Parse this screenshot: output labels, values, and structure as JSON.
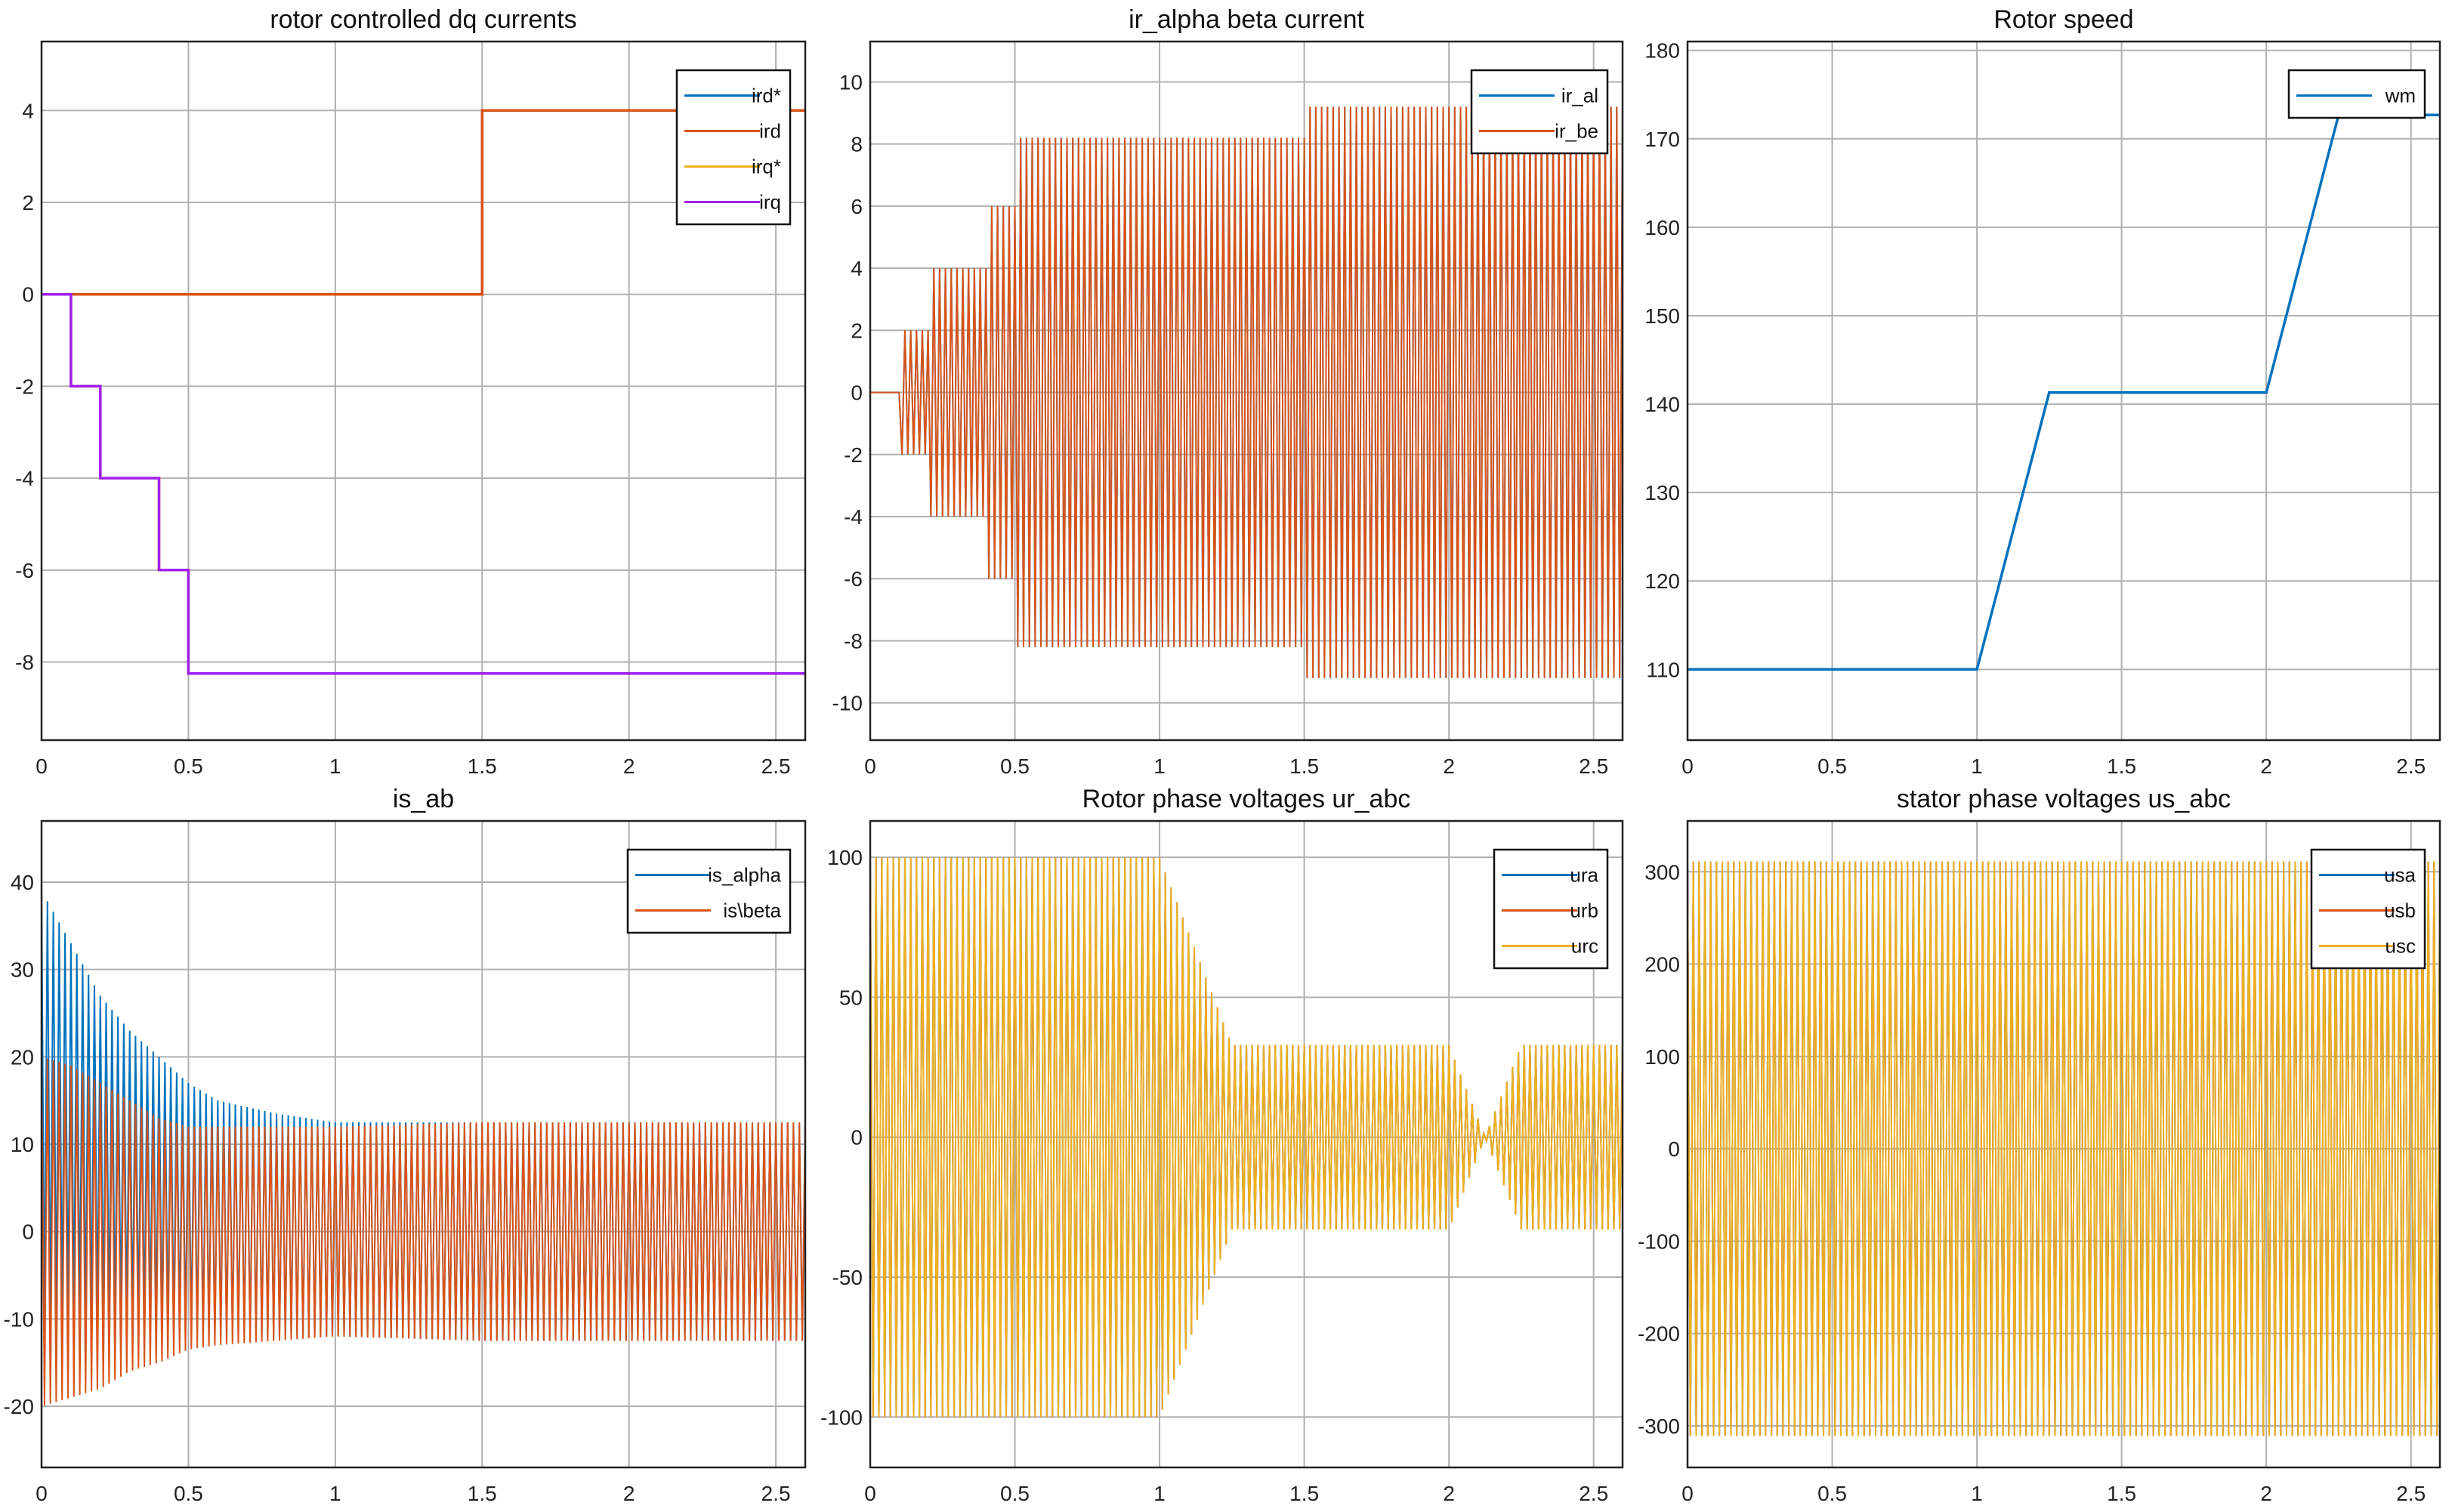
{
  "figure": {
    "colors": {
      "blue": "#0072BD",
      "orange": "#D95319",
      "yellow": "#EDB120",
      "purple": "#A020F0",
      "grid": "#b0b0b0",
      "axis": "#222222"
    }
  },
  "chart_data": [
    {
      "id": "dq",
      "type": "line",
      "title": "rotor controlled dq currents",
      "xlim": [
        0,
        2.6
      ],
      "ylim": [
        -9.7,
        5.5
      ],
      "xticks": [
        0,
        0.5,
        1,
        1.5,
        2,
        2.5
      ],
      "xtick_labels": [
        "0",
        "0.5",
        "1",
        "1.5",
        "2",
        "2.5"
      ],
      "yticks": [
        -8,
        -6,
        -4,
        -2,
        0,
        2,
        4
      ],
      "ytick_labels": [
        "-8",
        "-6",
        "-4",
        "-2",
        "0",
        "2",
        "4"
      ],
      "grid": true,
      "legend": "top-right",
      "series": [
        {
          "name": "ird*",
          "color": "blue",
          "kind": "step",
          "x": [
            0,
            1.5,
            1.5,
            2.6
          ],
          "y": [
            0,
            0,
            4,
            4
          ]
        },
        {
          "name": "ird",
          "color": "orange",
          "kind": "step",
          "x": [
            0,
            1.5,
            1.5,
            2.6
          ],
          "y": [
            0,
            0,
            4,
            4
          ]
        },
        {
          "name": "irq*",
          "color": "yellow",
          "kind": "step",
          "x": [
            0,
            0.1,
            0.1,
            0.2,
            0.2,
            0.4,
            0.4,
            0.5,
            0.5,
            2.6
          ],
          "y": [
            0,
            0,
            -2,
            -2,
            -4,
            -4,
            -6,
            -6,
            -8.25,
            -8.25
          ]
        },
        {
          "name": "irq",
          "color": "purple",
          "kind": "step",
          "x": [
            0,
            0.1,
            0.1,
            0.2,
            0.2,
            0.4,
            0.4,
            0.5,
            0.5,
            2.6
          ],
          "y": [
            0,
            0,
            -2,
            -2,
            -4,
            -4,
            -6,
            -6,
            -8.25,
            -8.25
          ]
        }
      ]
    },
    {
      "id": "iralphabeta",
      "type": "line",
      "title": "ir_alpha beta current",
      "xlim": [
        0,
        2.6
      ],
      "ylim": [
        -11.2,
        11.3
      ],
      "xticks": [
        0,
        0.5,
        1,
        1.5,
        2,
        2.5
      ],
      "xtick_labels": [
        "0",
        "0.5",
        "1",
        "1.5",
        "2",
        "2.5"
      ],
      "yticks": [
        -10,
        -8,
        -6,
        -4,
        -2,
        0,
        2,
        4,
        6,
        8,
        10
      ],
      "ytick_labels": [
        "-10",
        "-8",
        "-6",
        "-4",
        "-2",
        "0",
        "2",
        "4",
        "6",
        "8",
        "10"
      ],
      "grid": true,
      "legend": "top-right",
      "series": [
        {
          "name": "ir_al",
          "color": "blue",
          "kind": "oscillation",
          "x": [
            0,
            0.1,
            0.1,
            0.2,
            0.2,
            0.4,
            0.4,
            0.5,
            0.5,
            1.5,
            1.5,
            2.6
          ],
          "amplitude": [
            0,
            0,
            2,
            2,
            4,
            4,
            6,
            6,
            8.2,
            8.2,
            9.2,
            9.2
          ],
          "offset": 0
        },
        {
          "name": "ir_be",
          "color": "orange",
          "kind": "oscillation",
          "x": [
            0,
            0.1,
            0.1,
            0.2,
            0.2,
            0.4,
            0.4,
            0.5,
            0.5,
            1.5,
            1.5,
            2.6
          ],
          "amplitude": [
            0,
            0,
            2,
            2,
            4,
            4,
            6,
            6,
            8.2,
            8.2,
            9.2,
            9.2
          ],
          "offset": 0
        }
      ]
    },
    {
      "id": "speed",
      "type": "line",
      "title": "Rotor speed",
      "xlim": [
        0,
        2.6
      ],
      "ylim": [
        102,
        181
      ],
      "xticks": [
        0,
        0.5,
        1,
        1.5,
        2,
        2.5
      ],
      "xtick_labels": [
        "0",
        "0.5",
        "1",
        "1.5",
        "2",
        "2.5"
      ],
      "yticks": [
        110,
        120,
        130,
        140,
        150,
        160,
        170,
        180
      ],
      "ytick_labels": [
        "110",
        "120",
        "130",
        "140",
        "150",
        "160",
        "170",
        "180"
      ],
      "grid": true,
      "legend": "top-right",
      "series": [
        {
          "name": "wm",
          "color": "blue",
          "kind": "line",
          "x": [
            0,
            1,
            1.25,
            2,
            2.25,
            2.6
          ],
          "y": [
            110,
            110,
            141.3,
            141.3,
            172.7,
            172.7
          ]
        }
      ]
    },
    {
      "id": "isab",
      "type": "line",
      "title": "is_ab",
      "xlim": [
        0,
        2.6
      ],
      "ylim": [
        -27,
        47
      ],
      "xticks": [
        0,
        0.5,
        1,
        1.5,
        2,
        2.5
      ],
      "xtick_labels": [
        "0",
        "0.5",
        "1",
        "1.5",
        "2",
        "2.5"
      ],
      "yticks": [
        -20,
        -10,
        0,
        10,
        20,
        30,
        40
      ],
      "ytick_labels": [
        "-20",
        "-10",
        "0",
        "10",
        "20",
        "30",
        "40"
      ],
      "grid": true,
      "legend": "top-right",
      "series": [
        {
          "name": "is_alpha",
          "color": "blue",
          "kind": "decay",
          "x": [
            0,
            0.1,
            0.2,
            0.3,
            0.4,
            0.5,
            0.6,
            0.8,
            1.0,
            1.5,
            2.6
          ],
          "upper": [
            39,
            33,
            27,
            23,
            20,
            17,
            15,
            13.5,
            12.5,
            12.5,
            12.5
          ],
          "lower": [
            -10,
            -10,
            -10,
            -10.5,
            -11,
            -11.5,
            -12,
            -12,
            -12,
            -12.5,
            -12.5
          ]
        },
        {
          "name": "is\\beta",
          "color": "orange",
          "kind": "decay",
          "x": [
            0,
            0.1,
            0.2,
            0.3,
            0.4,
            0.5,
            0.6,
            0.8,
            1.0,
            1.5,
            2.6
          ],
          "upper": [
            20,
            19,
            17,
            15,
            13,
            12,
            12,
            12,
            12,
            12.5,
            12.5
          ],
          "lower": [
            -20,
            -19,
            -18,
            -16,
            -15,
            -13.5,
            -13,
            -12.5,
            -12,
            -12.5,
            -12.5
          ]
        }
      ]
    },
    {
      "id": "ur",
      "type": "line",
      "title": "Rotor phase voltages ur_abc",
      "xlim": [
        0,
        2.6
      ],
      "ylim": [
        -118,
        113
      ],
      "xticks": [
        0,
        0.5,
        1,
        1.5,
        2,
        2.5
      ],
      "xtick_labels": [
        "0",
        "0.5",
        "1",
        "1.5",
        "2",
        "2.5"
      ],
      "yticks": [
        -100,
        -50,
        0,
        50,
        100
      ],
      "ytick_labels": [
        "-100",
        "-50",
        "0",
        "50",
        "100"
      ],
      "grid": true,
      "legend": "top-right",
      "series": [
        {
          "name": "ura",
          "color": "blue",
          "kind": "oscillation",
          "x": [
            0,
            1,
            1.25,
            2,
            2.125,
            2.25,
            2.6
          ],
          "amplitude": [
            100,
            100,
            33,
            33,
            0,
            33,
            33
          ],
          "offset": 0
        },
        {
          "name": "urb",
          "color": "orange",
          "kind": "oscillation",
          "x": [
            0,
            1,
            1.25,
            2,
            2.125,
            2.25,
            2.6
          ],
          "amplitude": [
            100,
            100,
            33,
            33,
            0,
            33,
            33
          ],
          "offset": 0
        },
        {
          "name": "urc",
          "color": "yellow",
          "kind": "oscillation",
          "x": [
            0,
            1,
            1.25,
            2,
            2.125,
            2.25,
            2.6
          ],
          "amplitude": [
            100,
            100,
            33,
            33,
            0,
            33,
            33
          ],
          "offset": 0
        }
      ]
    },
    {
      "id": "us",
      "type": "line",
      "title": "stator phase voltages us_abc",
      "xlim": [
        0,
        2.6
      ],
      "ylim": [
        -345,
        355
      ],
      "xticks": [
        0,
        0.5,
        1,
        1.5,
        2,
        2.5
      ],
      "xtick_labels": [
        "0",
        "0.5",
        "1",
        "1.5",
        "2",
        "2.5"
      ],
      "yticks": [
        -300,
        -200,
        -100,
        0,
        100,
        200,
        300
      ],
      "ytick_labels": [
        "-300",
        "-200",
        "-100",
        "0",
        "100",
        "200",
        "300"
      ],
      "grid": true,
      "legend": "top-right",
      "series": [
        {
          "name": "usa",
          "color": "blue",
          "kind": "oscillation",
          "x": [
            0,
            2.6
          ],
          "amplitude": [
            311,
            311
          ],
          "offset": 0
        },
        {
          "name": "usb",
          "color": "orange",
          "kind": "oscillation",
          "x": [
            0,
            2.6
          ],
          "amplitude": [
            311,
            311
          ],
          "offset": 0
        },
        {
          "name": "usc",
          "color": "yellow",
          "kind": "oscillation",
          "x": [
            0,
            2.6
          ],
          "amplitude": [
            311,
            311
          ],
          "offset": 0
        }
      ]
    }
  ]
}
